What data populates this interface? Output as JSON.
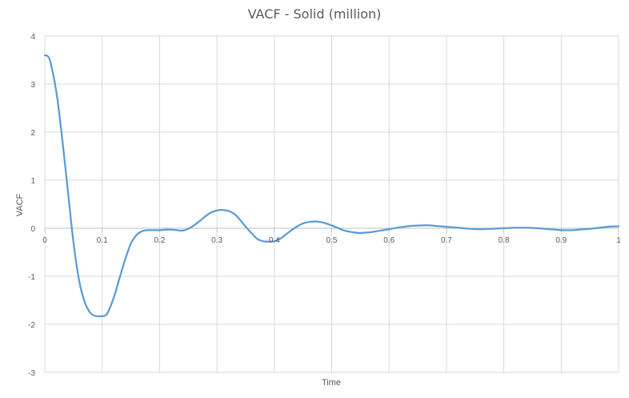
{
  "chart_data": {
    "type": "line",
    "title": "VACF - Solid (million)",
    "xlabel": "Time",
    "ylabel": "VACF",
    "xlim": [
      0,
      1
    ],
    "ylim": [
      -3,
      4
    ],
    "x_ticks": [
      0,
      0.1,
      0.2,
      0.3,
      0.4,
      0.5,
      0.6,
      0.7,
      0.8,
      0.9,
      1
    ],
    "x_tick_labels": [
      "0",
      "0.1",
      "0.2",
      "0.3",
      "0.4",
      "0.5",
      "0.6",
      "0.7",
      "0.8",
      "0.9",
      "1"
    ],
    "y_ticks": [
      4,
      3,
      2,
      1,
      0,
      -1,
      -2,
      -3
    ],
    "y_tick_labels": [
      "4",
      "3",
      "2",
      "1",
      "0",
      "-1",
      "-2",
      "-3"
    ],
    "grid": true,
    "legend": "none",
    "series": [
      {
        "color": "#5b9bd5",
        "x": [
          0,
          0.005,
          0.01,
          0.02,
          0.03,
          0.04,
          0.05,
          0.06,
          0.07,
          0.08,
          0.09,
          0.1,
          0.105,
          0.11,
          0.12,
          0.13,
          0.14,
          0.15,
          0.16,
          0.17,
          0.18,
          0.19,
          0.2,
          0.21,
          0.22,
          0.23,
          0.24,
          0.25,
          0.26,
          0.27,
          0.28,
          0.29,
          0.3,
          0.31,
          0.32,
          0.33,
          0.34,
          0.35,
          0.36,
          0.37,
          0.38,
          0.39,
          0.4,
          0.41,
          0.42,
          0.43,
          0.44,
          0.45,
          0.46,
          0.47,
          0.48,
          0.49,
          0.5,
          0.51,
          0.52,
          0.53,
          0.54,
          0.55,
          0.56,
          0.57,
          0.58,
          0.59,
          0.6,
          0.62,
          0.64,
          0.66,
          0.67,
          0.68,
          0.7,
          0.72,
          0.74,
          0.76,
          0.78,
          0.8,
          0.82,
          0.84,
          0.86,
          0.88,
          0.9,
          0.92,
          0.94,
          0.96,
          0.98,
          1.0
        ],
        "y": [
          3.6,
          3.58,
          3.45,
          2.85,
          1.9,
          0.8,
          -0.3,
          -1.1,
          -1.55,
          -1.77,
          -1.83,
          -1.83,
          -1.82,
          -1.75,
          -1.45,
          -1.05,
          -0.65,
          -0.32,
          -0.14,
          -0.06,
          -0.04,
          -0.04,
          -0.04,
          -0.03,
          -0.03,
          -0.04,
          -0.05,
          -0.01,
          0.06,
          0.15,
          0.25,
          0.33,
          0.37,
          0.38,
          0.36,
          0.3,
          0.18,
          0.03,
          -0.1,
          -0.22,
          -0.27,
          -0.28,
          -0.27,
          -0.22,
          -0.13,
          -0.04,
          0.04,
          0.1,
          0.13,
          0.14,
          0.13,
          0.1,
          0.06,
          0.01,
          -0.04,
          -0.07,
          -0.09,
          -0.1,
          -0.09,
          -0.08,
          -0.06,
          -0.04,
          -0.02,
          0.02,
          0.05,
          0.06,
          0.06,
          0.05,
          0.03,
          0.01,
          -0.01,
          -0.02,
          -0.01,
          0.0,
          0.01,
          0.01,
          0.0,
          -0.02,
          -0.04,
          -0.04,
          -0.02,
          0.0,
          0.03,
          0.04
        ]
      }
    ]
  }
}
